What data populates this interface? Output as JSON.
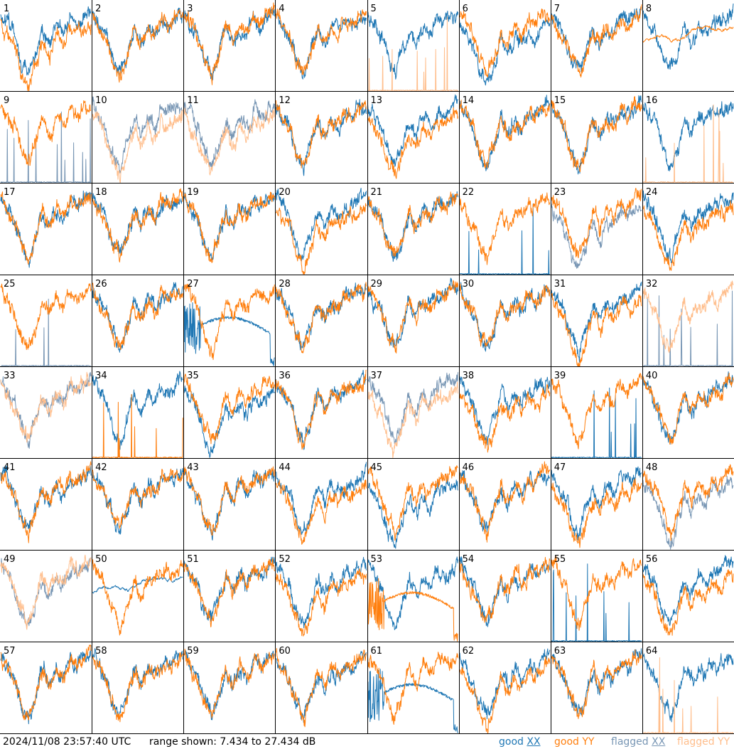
{
  "footer": {
    "timestamp": "2024/11/08 23:57:40 UTC",
    "range_text": "range shown: 7.434 to 27.434 dB",
    "legend": [
      {
        "key": "good_xx",
        "label_prefix": "good ",
        "label_pol": "XX",
        "color": "#1f77b4"
      },
      {
        "key": "good_yy",
        "label_prefix": "good ",
        "label_pol": "YY",
        "color": "#ff7f0e"
      },
      {
        "key": "flagged_xx",
        "label_prefix": "flagged ",
        "label_pol": "XX",
        "color": "#7896b4"
      },
      {
        "key": "flagged_yy",
        "label_prefix": "flagged ",
        "label_pol": "YY",
        "color": "#ffbe8c"
      }
    ]
  },
  "chart_data": {
    "type": "line",
    "title": "",
    "layout": "8x8 grid of small multiples, one per tile",
    "y_units": "dB",
    "ylim": [
      7.434,
      27.434
    ],
    "x_axis_labels": "none",
    "grid": false,
    "legend_placement": "bottom-right",
    "colors": {
      "good_xx": "#1f77b4",
      "good_yy": "#ff7f0e",
      "flagged_xx": "#7896b4",
      "flagged_yy": "#ffbe8c"
    },
    "shape_levels_db": [
      25.0,
      22.4,
      19.7,
      14.2,
      11.5,
      16.0,
      21.7,
      18.1,
      22.1,
      20.2,
      23.5,
      22.7,
      24.4,
      25.2
    ],
    "trace_types": {
      "normal": "noisy bandpass following the shape levels",
      "offset": "normal bandpass, XX and YY offset by ~3 dB",
      "dropouts": "near the floor (7.4 dB) with sparse spikes",
      "decay": "strong low-channel noise then a smooth slowly varying curve",
      "calm": "flattened bandpass near 19-22 dB"
    },
    "tiles": [
      {
        "label": "1",
        "xx": "normal",
        "xx_flagged": false,
        "yy": "offset",
        "yy_flagged": false
      },
      {
        "label": "2",
        "xx": "normal",
        "xx_flagged": false,
        "yy": "normal",
        "yy_flagged": false
      },
      {
        "label": "3",
        "xx": "normal",
        "xx_flagged": false,
        "yy": "normal",
        "yy_flagged": false
      },
      {
        "label": "4",
        "xx": "normal",
        "xx_flagged": false,
        "yy": "normal",
        "yy_flagged": false
      },
      {
        "label": "5",
        "xx": "normal",
        "xx_flagged": false,
        "yy": "dropouts",
        "yy_flagged": true
      },
      {
        "label": "6",
        "xx": "offset",
        "xx_flagged": false,
        "yy": "normal",
        "yy_flagged": false
      },
      {
        "label": "7",
        "xx": "normal",
        "xx_flagged": false,
        "yy": "normal",
        "yy_flagged": false
      },
      {
        "label": "8",
        "xx": "normal",
        "xx_flagged": false,
        "yy": "calm",
        "yy_flagged": false
      },
      {
        "label": "9",
        "xx": "dropouts",
        "xx_flagged": true,
        "yy": "normal",
        "yy_flagged": false
      },
      {
        "label": "10",
        "xx": "normal",
        "xx_flagged": true,
        "yy": "offset",
        "yy_flagged": true
      },
      {
        "label": "11",
        "xx": "normal",
        "xx_flagged": true,
        "yy": "offset",
        "yy_flagged": true
      },
      {
        "label": "12",
        "xx": "normal",
        "xx_flagged": false,
        "yy": "normal",
        "yy_flagged": false
      },
      {
        "label": "13",
        "xx": "normal",
        "xx_flagged": false,
        "yy": "offset",
        "yy_flagged": false
      },
      {
        "label": "14",
        "xx": "normal",
        "xx_flagged": false,
        "yy": "normal",
        "yy_flagged": false
      },
      {
        "label": "15",
        "xx": "normal",
        "xx_flagged": false,
        "yy": "normal",
        "yy_flagged": false
      },
      {
        "label": "16",
        "xx": "normal",
        "xx_flagged": false,
        "yy": "dropouts",
        "yy_flagged": true
      },
      {
        "label": "17",
        "xx": "normal",
        "xx_flagged": false,
        "yy": "normal",
        "yy_flagged": false
      },
      {
        "label": "18",
        "xx": "normal",
        "xx_flagged": false,
        "yy": "normal",
        "yy_flagged": false
      },
      {
        "label": "19",
        "xx": "normal",
        "xx_flagged": false,
        "yy": "normal",
        "yy_flagged": false
      },
      {
        "label": "20",
        "xx": "normal",
        "xx_flagged": false,
        "yy": "offset",
        "yy_flagged": false
      },
      {
        "label": "21",
        "xx": "normal",
        "xx_flagged": false,
        "yy": "normal",
        "yy_flagged": false
      },
      {
        "label": "22",
        "xx": "dropouts",
        "xx_flagged": false,
        "yy": "normal",
        "yy_flagged": false
      },
      {
        "label": "23",
        "xx": "offset",
        "xx_flagged": true,
        "yy": "normal",
        "yy_flagged": false
      },
      {
        "label": "24",
        "xx": "normal",
        "xx_flagged": false,
        "yy": "offset",
        "yy_flagged": false
      },
      {
        "label": "25",
        "xx": "dropouts",
        "xx_flagged": true,
        "yy": "normal",
        "yy_flagged": false
      },
      {
        "label": "26",
        "xx": "normal",
        "xx_flagged": false,
        "yy": "normal",
        "yy_flagged": false
      },
      {
        "label": "27",
        "xx": "decay",
        "xx_flagged": false,
        "yy": "normal",
        "yy_flagged": false
      },
      {
        "label": "28",
        "xx": "normal",
        "xx_flagged": false,
        "yy": "normal",
        "yy_flagged": false
      },
      {
        "label": "29",
        "xx": "normal",
        "xx_flagged": false,
        "yy": "normal",
        "yy_flagged": false
      },
      {
        "label": "30",
        "xx": "normal",
        "xx_flagged": false,
        "yy": "normal",
        "yy_flagged": false
      },
      {
        "label": "31",
        "xx": "normal",
        "xx_flagged": false,
        "yy": "offset",
        "yy_flagged": false
      },
      {
        "label": "32",
        "xx": "dropouts",
        "xx_flagged": true,
        "yy": "normal",
        "yy_flagged": true
      },
      {
        "label": "33",
        "xx": "normal",
        "xx_flagged": true,
        "yy": "normal",
        "yy_flagged": true
      },
      {
        "label": "34",
        "xx": "normal",
        "xx_flagged": false,
        "yy": "dropouts",
        "yy_flagged": false
      },
      {
        "label": "35",
        "xx": "offset",
        "xx_flagged": false,
        "yy": "normal",
        "yy_flagged": false
      },
      {
        "label": "36",
        "xx": "normal",
        "xx_flagged": false,
        "yy": "normal",
        "yy_flagged": false
      },
      {
        "label": "37",
        "xx": "normal",
        "xx_flagged": true,
        "yy": "offset",
        "yy_flagged": true
      },
      {
        "label": "38",
        "xx": "normal",
        "xx_flagged": false,
        "yy": "offset",
        "yy_flagged": false
      },
      {
        "label": "39",
        "xx": "dropouts",
        "xx_flagged": false,
        "yy": "normal",
        "yy_flagged": false
      },
      {
        "label": "40",
        "xx": "normal",
        "xx_flagged": false,
        "yy": "normal",
        "yy_flagged": false
      },
      {
        "label": "41",
        "xx": "normal",
        "xx_flagged": false,
        "yy": "normal",
        "yy_flagged": false
      },
      {
        "label": "42",
        "xx": "normal",
        "xx_flagged": false,
        "yy": "normal",
        "yy_flagged": false
      },
      {
        "label": "43",
        "xx": "normal",
        "xx_flagged": false,
        "yy": "normal",
        "yy_flagged": false
      },
      {
        "label": "44",
        "xx": "normal",
        "xx_flagged": false,
        "yy": "offset",
        "yy_flagged": false
      },
      {
        "label": "45",
        "xx": "offset",
        "xx_flagged": false,
        "yy": "normal",
        "yy_flagged": false
      },
      {
        "label": "46",
        "xx": "normal",
        "xx_flagged": false,
        "yy": "normal",
        "yy_flagged": false
      },
      {
        "label": "47",
        "xx": "normal",
        "xx_flagged": false,
        "yy": "offset",
        "yy_flagged": false
      },
      {
        "label": "48",
        "xx": "offset",
        "xx_flagged": true,
        "yy": "normal",
        "yy_flagged": false
      },
      {
        "label": "49",
        "xx": "normal",
        "xx_flagged": true,
        "yy": "normal",
        "yy_flagged": true
      },
      {
        "label": "50",
        "xx": "calm",
        "xx_flagged": false,
        "yy": "normal",
        "yy_flagged": false
      },
      {
        "label": "51",
        "xx": "normal",
        "xx_flagged": false,
        "yy": "normal",
        "yy_flagged": false
      },
      {
        "label": "52",
        "xx": "normal",
        "xx_flagged": false,
        "yy": "offset",
        "yy_flagged": false
      },
      {
        "label": "53",
        "xx": "normal",
        "xx_flagged": false,
        "yy": "decay",
        "yy_flagged": false
      },
      {
        "label": "54",
        "xx": "normal",
        "xx_flagged": false,
        "yy": "normal",
        "yy_flagged": false
      },
      {
        "label": "55",
        "xx": "dropouts",
        "xx_flagged": false,
        "yy": "normal",
        "yy_flagged": false
      },
      {
        "label": "56",
        "xx": "normal",
        "xx_flagged": false,
        "yy": "offset",
        "yy_flagged": false
      },
      {
        "label": "57",
        "xx": "normal",
        "xx_flagged": false,
        "yy": "normal",
        "yy_flagged": false
      },
      {
        "label": "58",
        "xx": "normal",
        "xx_flagged": false,
        "yy": "normal",
        "yy_flagged": false
      },
      {
        "label": "59",
        "xx": "normal",
        "xx_flagged": false,
        "yy": "normal",
        "yy_flagged": false
      },
      {
        "label": "60",
        "xx": "normal",
        "xx_flagged": false,
        "yy": "normal",
        "yy_flagged": false
      },
      {
        "label": "61",
        "xx": "decay",
        "xx_flagged": false,
        "yy": "normal",
        "yy_flagged": false
      },
      {
        "label": "62",
        "xx": "normal",
        "xx_flagged": false,
        "yy": "offset",
        "yy_flagged": false
      },
      {
        "label": "63",
        "xx": "normal",
        "xx_flagged": false,
        "yy": "normal",
        "yy_flagged": false
      },
      {
        "label": "64",
        "xx": "normal",
        "xx_flagged": false,
        "yy": "dropouts",
        "yy_flagged": true
      }
    ]
  }
}
